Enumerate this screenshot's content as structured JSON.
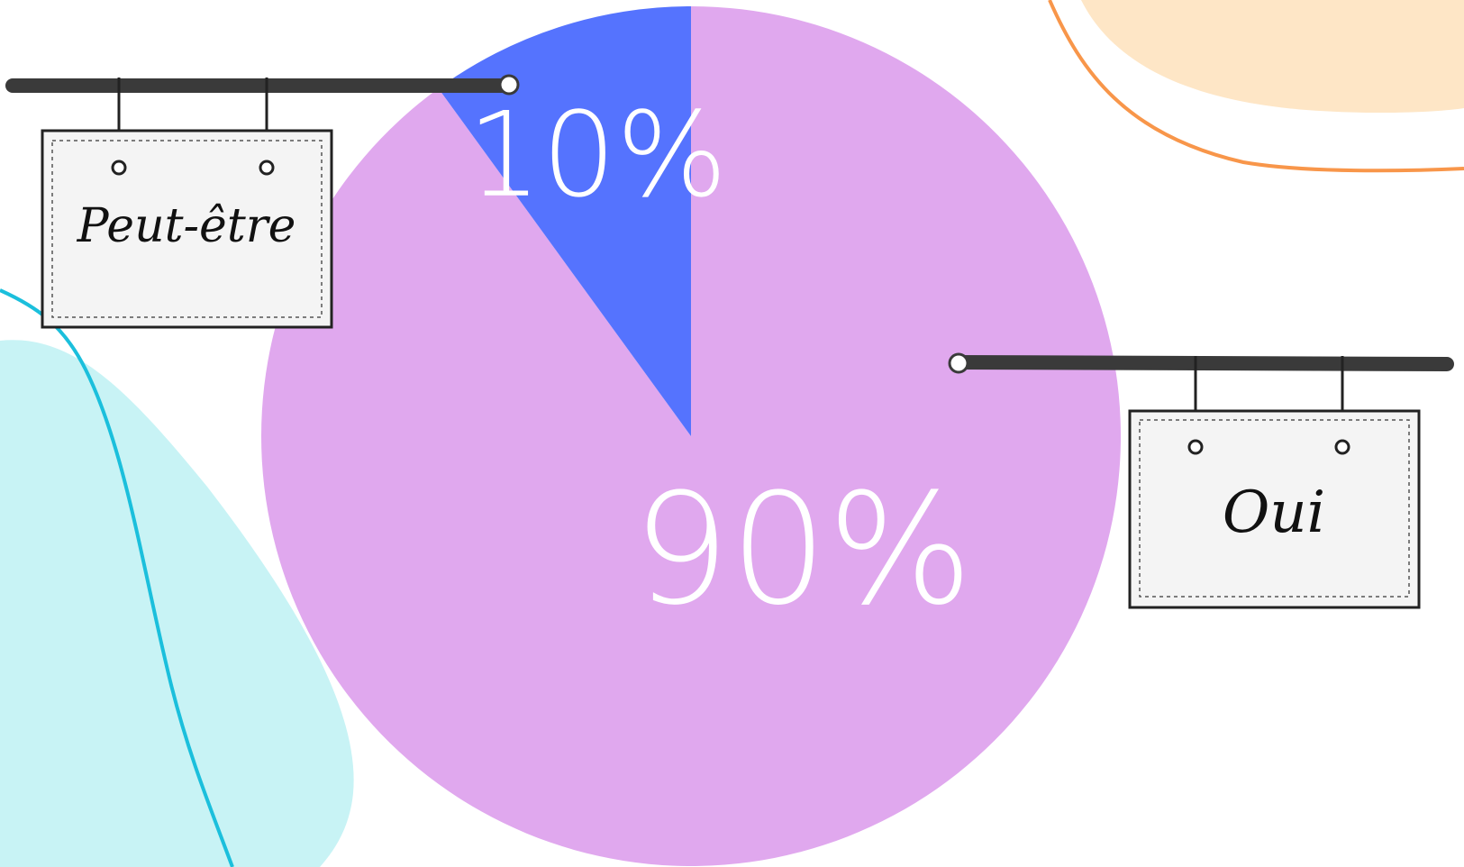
{
  "chart_data": {
    "type": "pie",
    "categories": [
      "Oui",
      "Peut-être"
    ],
    "values": [
      90,
      10
    ],
    "value_labels": [
      "90%",
      "10%"
    ],
    "colors": [
      "#e0a8ee",
      "#5573fe"
    ]
  }
}
